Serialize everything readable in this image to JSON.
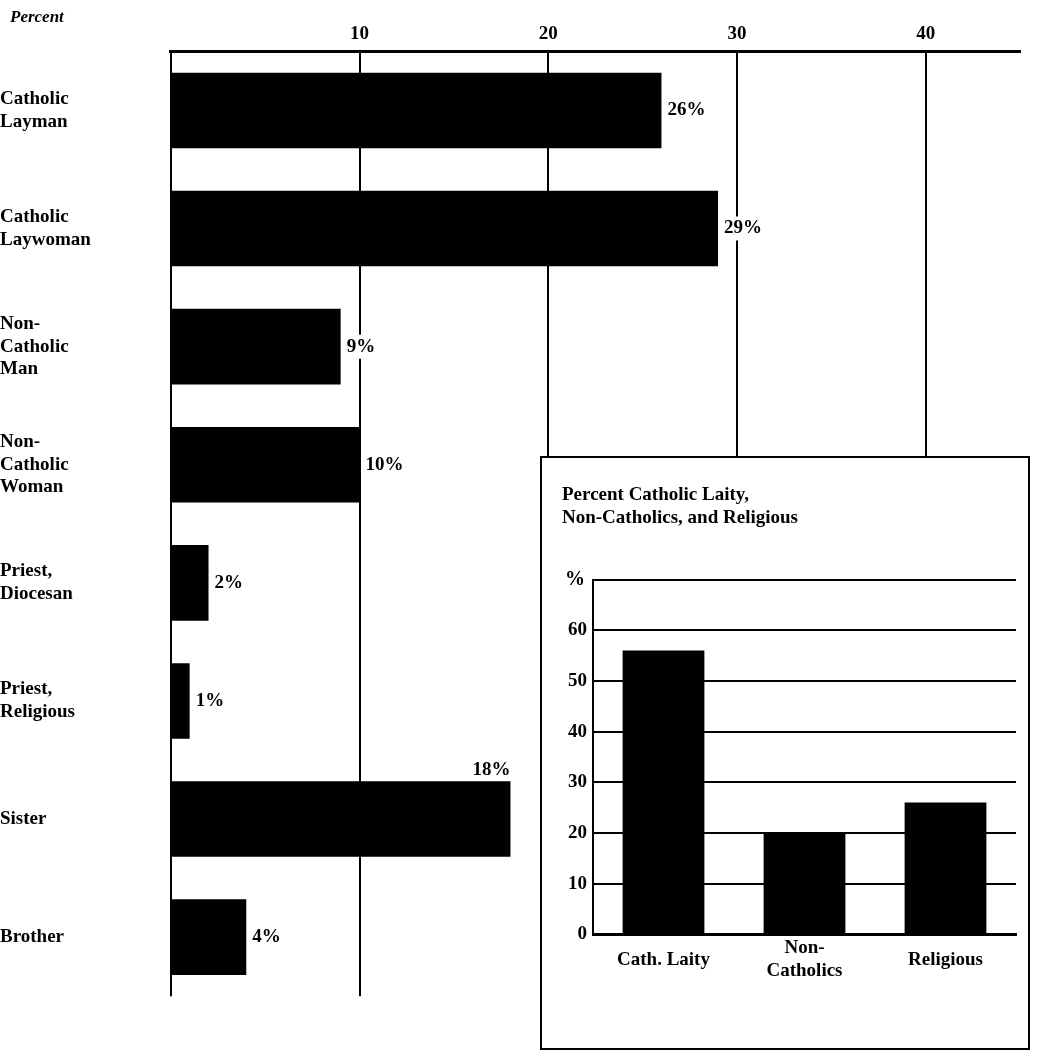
{
  "chart_data": [
    {
      "type": "bar",
      "orientation": "horizontal",
      "xlabel": "Percent",
      "categories": [
        "Catholic Layman",
        "Catholic Laywoman",
        "Non-Catholic Man",
        "Non-Catholic Woman",
        "Priest, Diocesan",
        "Priest, Religious",
        "Sister",
        "Brother"
      ],
      "values": [
        26,
        29,
        9,
        10,
        2,
        1,
        18,
        4
      ],
      "value_labels": [
        "26%",
        "29%",
        "9%",
        "10%",
        "2%",
        "1%",
        "18%",
        "4%"
      ],
      "color": "#000000",
      "xlim": [
        0,
        45
      ],
      "xticks": [
        {
          "value": 0,
          "label": null
        },
        10,
        20,
        30,
        40
      ],
      "grid": "x"
    },
    {
      "type": "bar",
      "title": "Percent Catholic Laity, Non-Catholics, and Religious",
      "ylabel": "%",
      "categories": [
        "Cath. Laity",
        "Non-Catholics",
        "Religious"
      ],
      "values": [
        56,
        20,
        26
      ],
      "color": "#000000",
      "ylim": [
        0,
        70
      ],
      "yticks": [
        0,
        10,
        20,
        30,
        40,
        50,
        60,
        {
          "value": 70,
          "label": null
        }
      ],
      "grid": "y"
    }
  ]
}
